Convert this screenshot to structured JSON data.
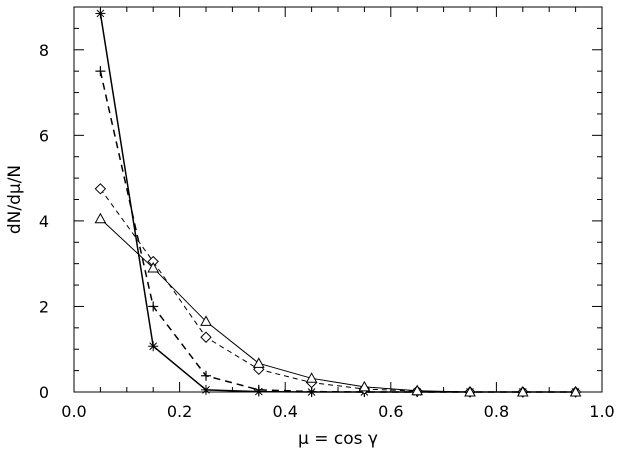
{
  "chart_data": {
    "type": "line",
    "xlabel": "μ = cos γ",
    "ylabel": "dN/dμ/N",
    "xlim": [
      0.0,
      1.0
    ],
    "ylim": [
      0,
      9
    ],
    "x_ticks": [
      "0.0",
      "0.2",
      "0.4",
      "0.6",
      "0.8",
      "1.0"
    ],
    "y_ticks": [
      "0",
      "2",
      "4",
      "6",
      "8"
    ],
    "x": [
      0.05,
      0.15,
      0.25,
      0.35,
      0.45,
      0.55,
      0.65,
      0.75,
      0.85,
      0.95
    ],
    "series": [
      {
        "marker": "asterisk",
        "line": "solid",
        "values": [
          8.85,
          1.07,
          0.05,
          0.01,
          0.0,
          0.0,
          0.0,
          0.0,
          0.0,
          0.0
        ]
      },
      {
        "marker": "plus",
        "line": "dashed",
        "values": [
          7.5,
          2.0,
          0.38,
          0.05,
          0.01,
          0.0,
          0.0,
          0.0,
          0.0,
          0.0
        ]
      },
      {
        "marker": "diamond",
        "line": "dashed-thin",
        "values": [
          4.75,
          3.05,
          1.28,
          0.53,
          0.22,
          0.07,
          0.02,
          0.0,
          0.0,
          0.0
        ]
      },
      {
        "marker": "triangle",
        "line": "solid-thin",
        "values": [
          4.05,
          2.9,
          1.65,
          0.67,
          0.32,
          0.12,
          0.03,
          0.0,
          0.0,
          0.0
        ]
      }
    ],
    "grid": false,
    "legend": "none"
  }
}
